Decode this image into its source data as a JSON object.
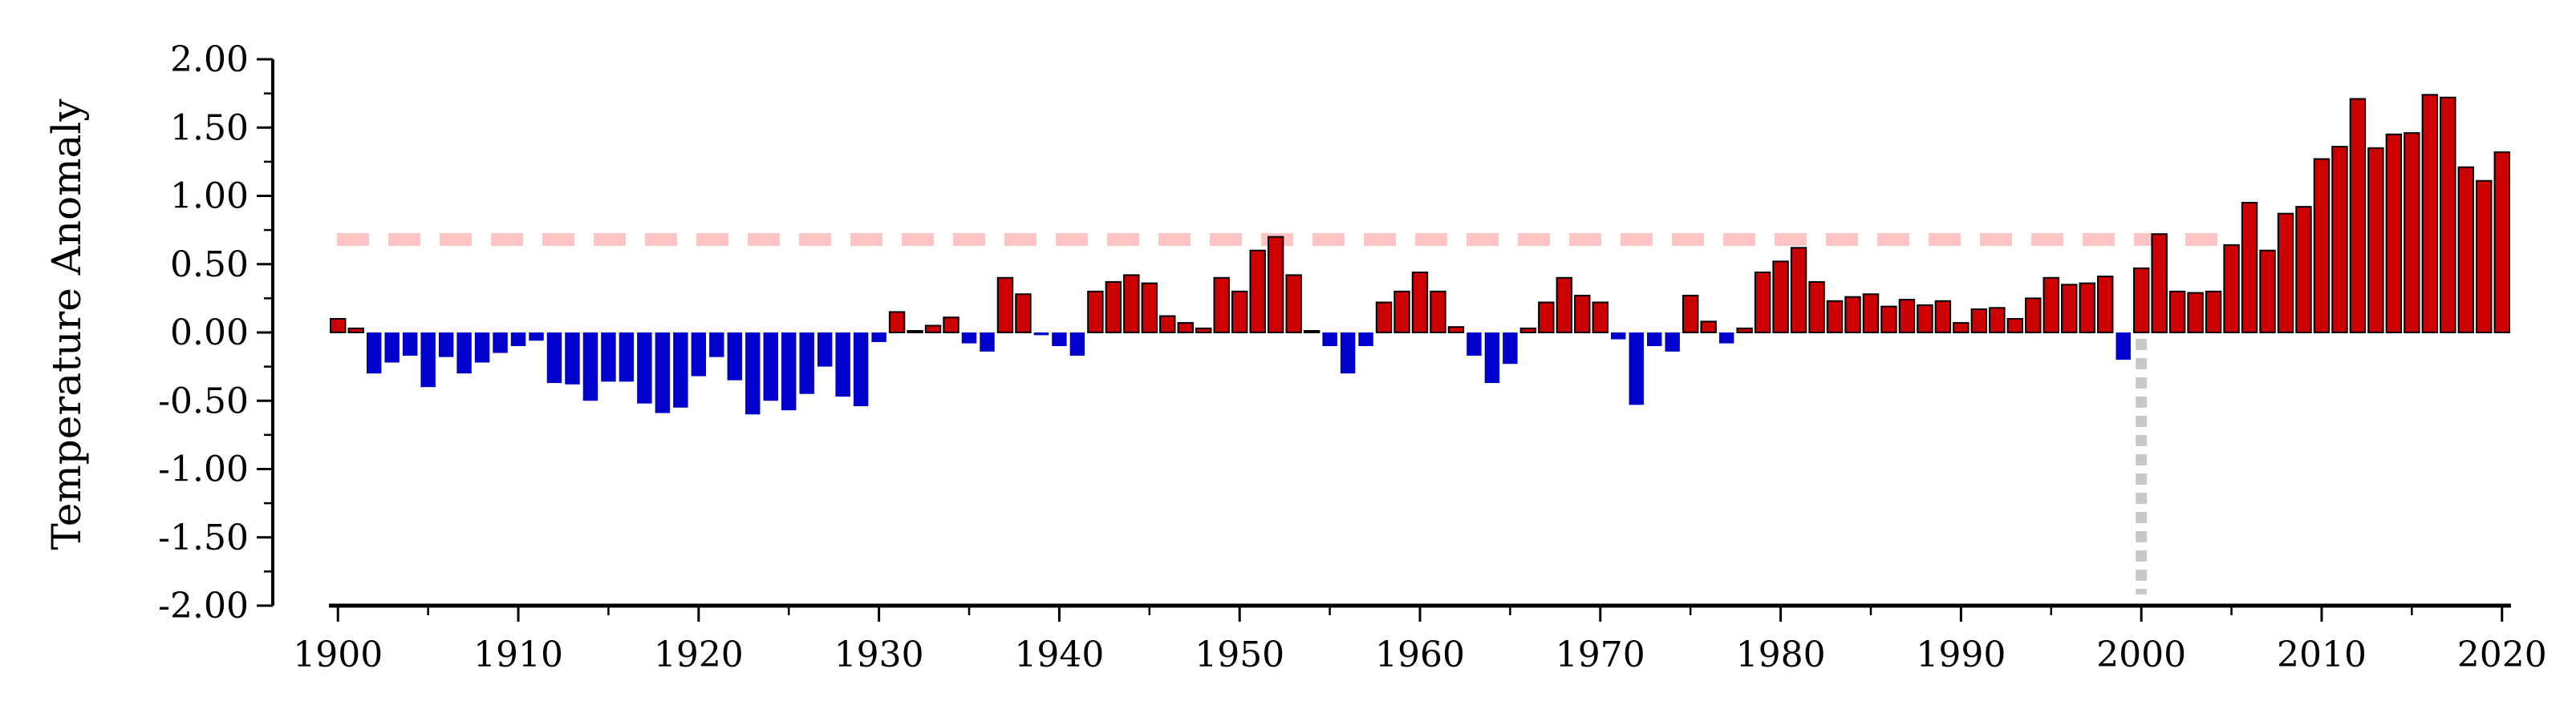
{
  "chart_data": {
    "type": "bar",
    "title": "",
    "xlabel": "",
    "ylabel": "Temperature Anomaly",
    "xlim": [
      1899.5,
      2020.5
    ],
    "ylim": [
      -2.0,
      2.0
    ],
    "y_ticks": [
      "2.00",
      "1.50",
      "1.00",
      "0.50",
      "0.00",
      "-0.50",
      "-1.00",
      "-1.50",
      "-2.00"
    ],
    "x_ticks": [
      "1900",
      "1910",
      "1920",
      "1930",
      "1940",
      "1950",
      "1960",
      "1970",
      "1980",
      "1990",
      "2000",
      "2010",
      "2020"
    ],
    "reference_line": {
      "value": 0.68,
      "color": "#ffc4c4",
      "style": "dashed"
    },
    "vertical_marker": {
      "year": 2000,
      "color": "#c8c8c8",
      "style": "dotted"
    },
    "colors": {
      "positive": "#cc0000",
      "negative": "#0000cc",
      "bar_outline": "#000000"
    },
    "grid": false,
    "legend": "none",
    "years": [
      1900,
      1901,
      1902,
      1903,
      1904,
      1905,
      1906,
      1907,
      1908,
      1909,
      1910,
      1911,
      1912,
      1913,
      1914,
      1915,
      1916,
      1917,
      1918,
      1919,
      1920,
      1921,
      1922,
      1923,
      1924,
      1925,
      1926,
      1927,
      1928,
      1929,
      1930,
      1931,
      1932,
      1933,
      1934,
      1935,
      1936,
      1937,
      1938,
      1939,
      1940,
      1941,
      1942,
      1943,
      1944,
      1945,
      1946,
      1947,
      1948,
      1949,
      1950,
      1951,
      1952,
      1953,
      1954,
      1955,
      1956,
      1957,
      1958,
      1959,
      1960,
      1961,
      1962,
      1963,
      1964,
      1965,
      1966,
      1967,
      1968,
      1969,
      1970,
      1971,
      1972,
      1973,
      1974,
      1975,
      1976,
      1977,
      1978,
      1979,
      1980,
      1981,
      1982,
      1983,
      1984,
      1985,
      1986,
      1987,
      1988,
      1989,
      1990,
      1991,
      1992,
      1993,
      1994,
      1995,
      1996,
      1997,
      1998,
      1999,
      2000,
      2001,
      2002,
      2003,
      2004,
      2005,
      2006,
      2007,
      2008,
      2009,
      2010,
      2011,
      2012,
      2013,
      2014,
      2015,
      2016,
      2017,
      2018,
      2019,
      2020
    ],
    "values": [
      0.1,
      0.03,
      -0.3,
      -0.22,
      -0.17,
      -0.4,
      -0.18,
      -0.3,
      -0.22,
      -0.15,
      -0.1,
      -0.06,
      -0.37,
      -0.38,
      -0.5,
      -0.36,
      -0.36,
      -0.52,
      -0.59,
      -0.55,
      -0.32,
      -0.18,
      -0.35,
      -0.6,
      -0.5,
      -0.57,
      -0.45,
      -0.25,
      -0.47,
      -0.54,
      -0.07,
      0.15,
      0.01,
      0.05,
      0.11,
      -0.08,
      -0.14,
      0.4,
      0.28,
      -0.02,
      -0.1,
      -0.17,
      0.3,
      0.37,
      0.42,
      0.36,
      0.12,
      0.07,
      0.03,
      0.4,
      0.3,
      0.6,
      0.7,
      0.42,
      0.01,
      -0.1,
      -0.3,
      -0.1,
      0.22,
      0.3,
      0.44,
      0.3,
      0.04,
      -0.17,
      -0.37,
      -0.23,
      0.03,
      0.22,
      0.4,
      0.27,
      0.22,
      -0.05,
      -0.53,
      -0.1,
      -0.14,
      0.27,
      0.08,
      -0.08,
      0.03,
      0.44,
      0.52,
      0.62,
      0.37,
      0.23,
      0.26,
      0.28,
      0.19,
      0.24,
      0.2,
      0.23,
      0.07,
      0.17,
      0.18,
      0.1,
      0.25,
      0.4,
      0.35,
      0.36,
      0.41,
      -0.2,
      0.47,
      0.72,
      0.3,
      0.29,
      0.3,
      0.64,
      0.95,
      0.6,
      0.87,
      0.92,
      1.27,
      1.36,
      1.71,
      1.35,
      1.45,
      1.46,
      1.74,
      1.72,
      1.21,
      1.11,
      1.32
    ]
  }
}
